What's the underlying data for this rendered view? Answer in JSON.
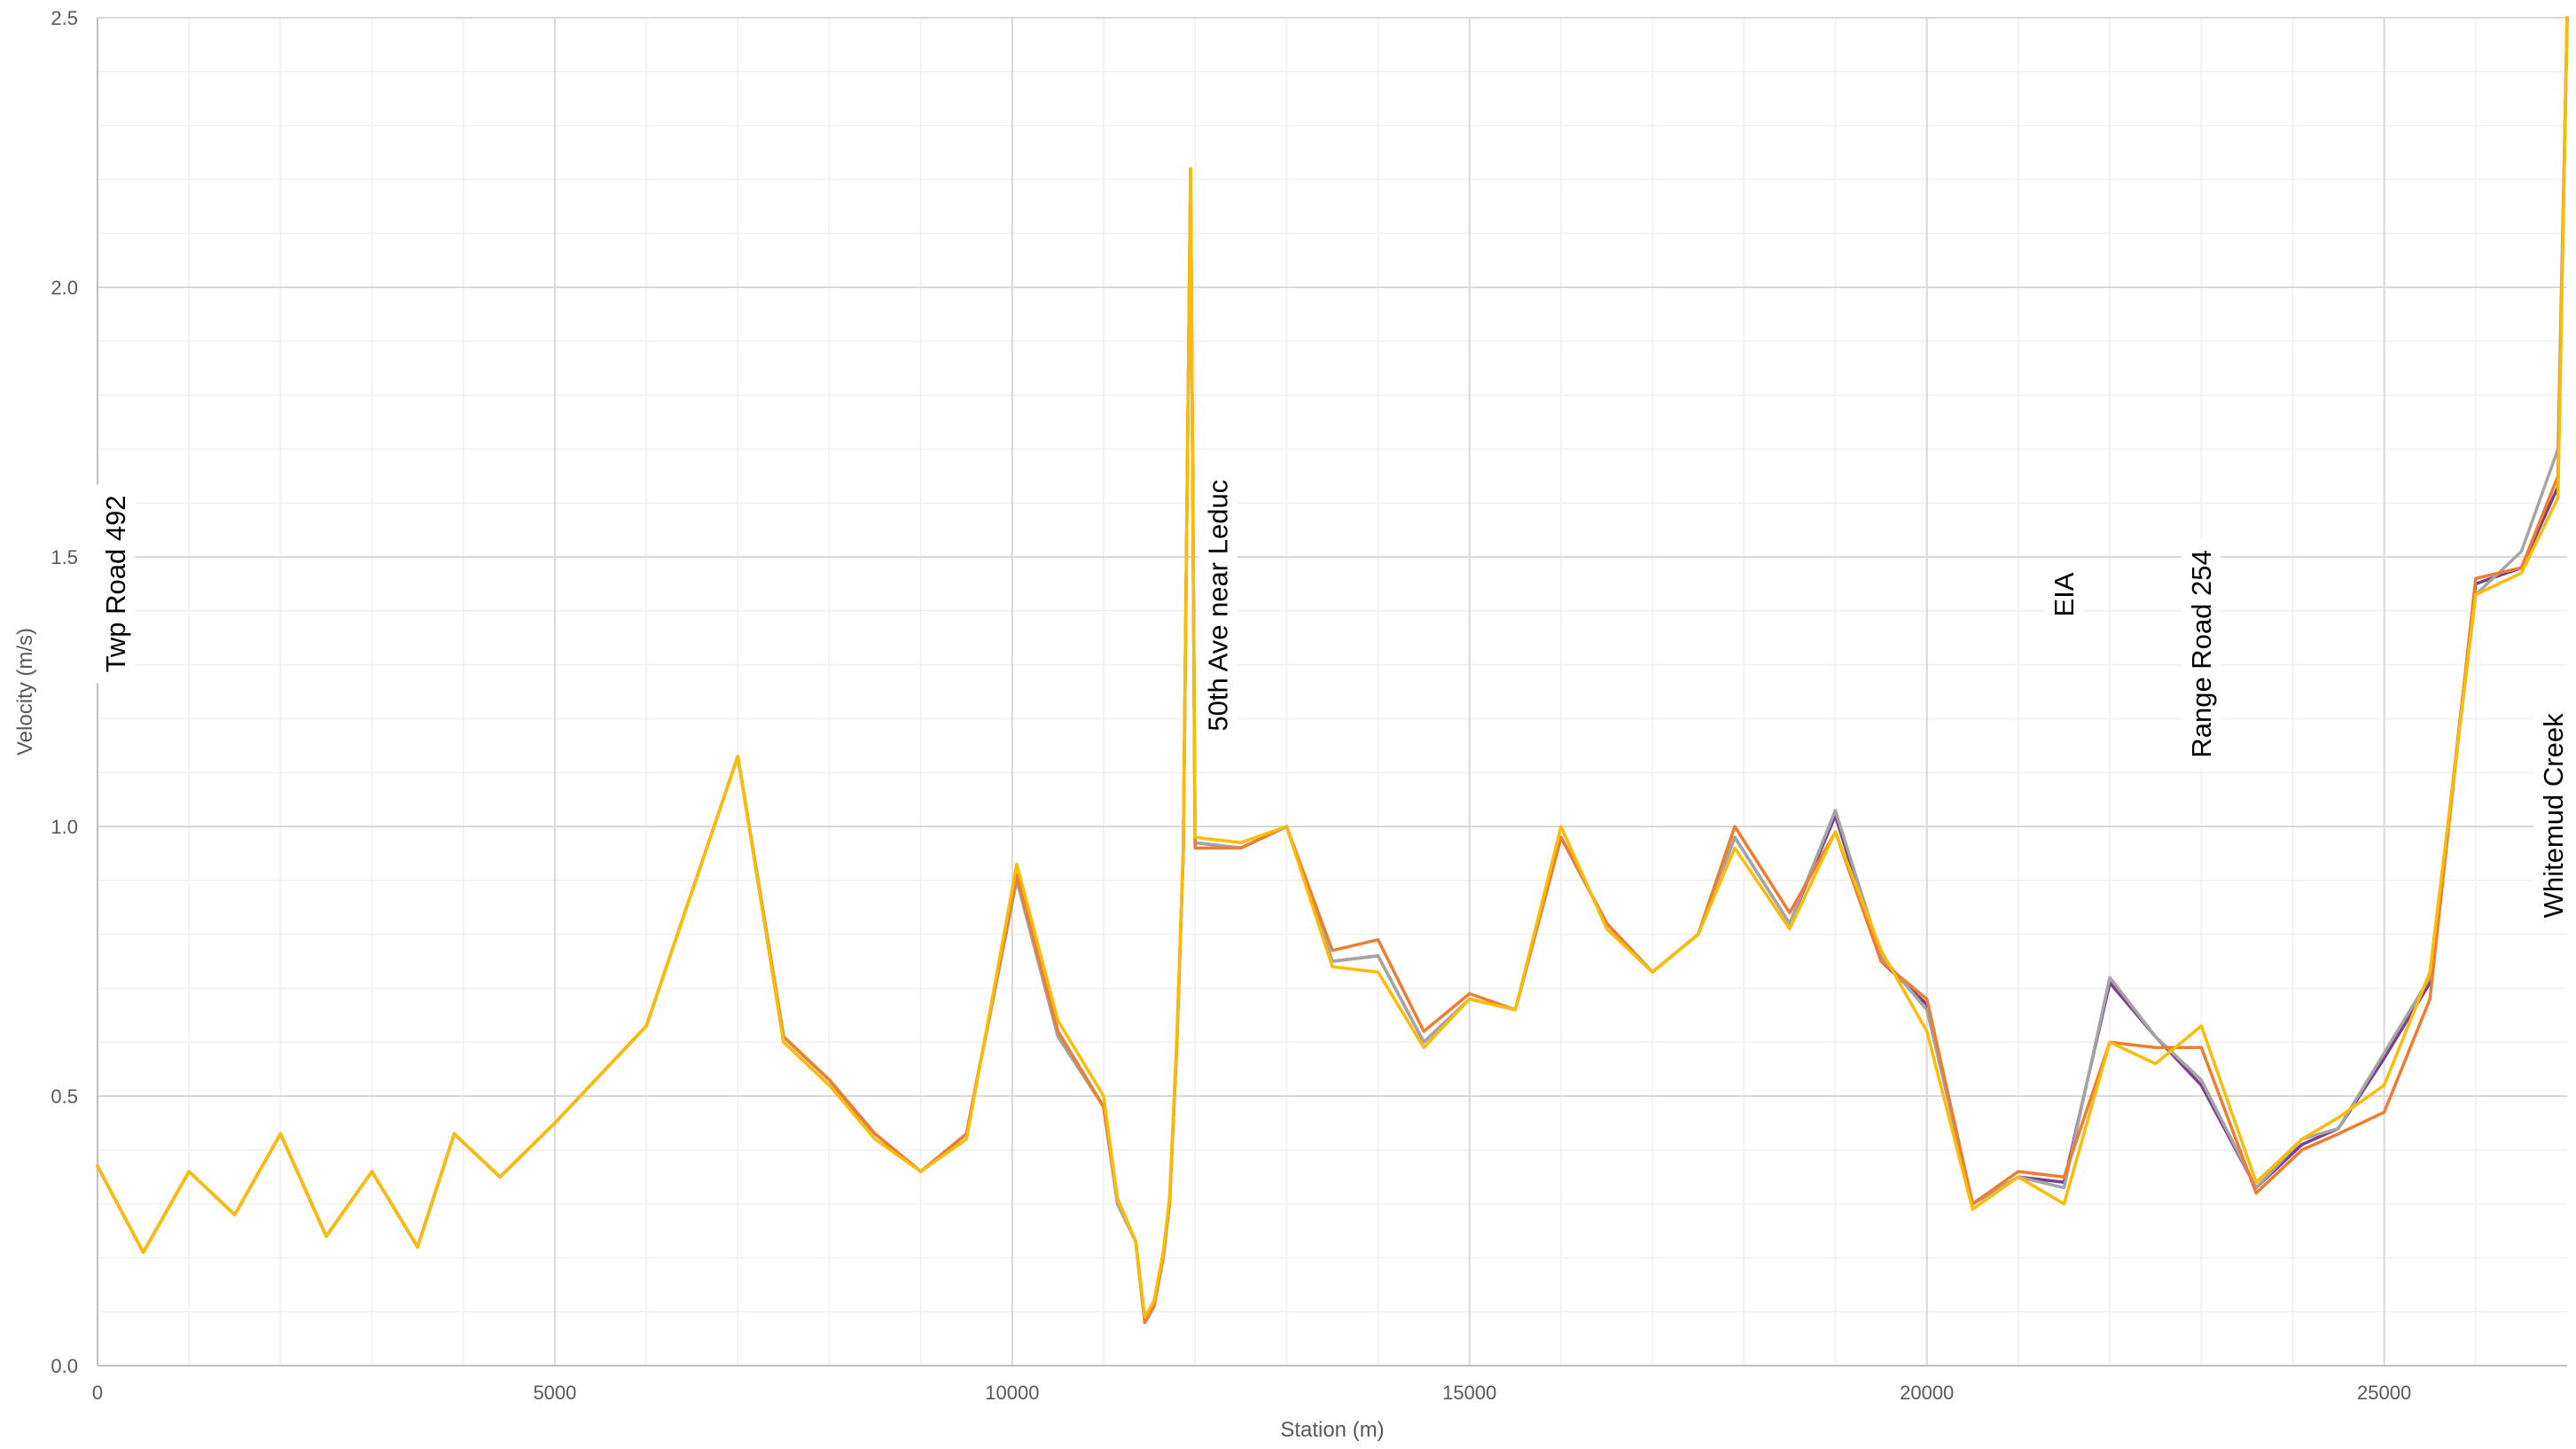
{
  "chart_data": {
    "type": "line",
    "xlabel": "Station (m)",
    "ylabel": "Velocity (m/s)",
    "xlim": [
      0,
      27000
    ],
    "ylim": [
      0,
      2.5
    ],
    "x_ticks": [
      "0",
      "5000",
      "10000",
      "15000",
      "20000",
      "25000"
    ],
    "y_ticks": [
      "0.0",
      "0.5",
      "1.0",
      "1.5",
      "2.0",
      "2.5"
    ],
    "grid": true,
    "annotations": [
      {
        "text": "Twp Road 492",
        "x": 200,
        "y": 1.45
      },
      {
        "text": "50th Ave near Leduc",
        "x": 12250,
        "y": 1.41
      },
      {
        "text": "EIA",
        "x": 21500,
        "y": 1.43
      },
      {
        "text": "Range Road 254",
        "x": 23000,
        "y": 1.32
      },
      {
        "text": "Whitemud Creek",
        "x": 26850,
        "y": 1.02
      }
    ],
    "series": [
      {
        "color": "#7b3f8c",
        "points": [
          [
            0,
            0.37
          ],
          [
            500,
            0.21
          ],
          [
            1000,
            0.36
          ],
          [
            1500,
            0.28
          ],
          [
            2000,
            0.43
          ],
          [
            2500,
            0.24
          ],
          [
            3000,
            0.36
          ],
          [
            3500,
            0.22
          ],
          [
            3900,
            0.43
          ],
          [
            4400,
            0.35
          ],
          [
            5000,
            0.45
          ],
          [
            6000,
            0.63
          ],
          [
            7000,
            1.13
          ],
          [
            7500,
            0.61
          ],
          [
            8000,
            0.53
          ],
          [
            8500,
            0.43
          ],
          [
            9000,
            0.36
          ],
          [
            9500,
            0.43
          ],
          [
            10050,
            0.91
          ],
          [
            10500,
            0.62
          ],
          [
            11000,
            0.48
          ],
          [
            11150,
            0.31
          ],
          [
            11350,
            0.23
          ],
          [
            11450,
            0.08
          ],
          [
            11550,
            0.11
          ],
          [
            11650,
            0.2
          ],
          [
            11720,
            0.3
          ],
          [
            11800,
            0.6
          ],
          [
            11870,
            0.95
          ],
          [
            11950,
            2.22
          ],
          [
            12000,
            0.97
          ],
          [
            12500,
            0.96
          ],
          [
            13000,
            1.0
          ],
          [
            13500,
            0.75
          ],
          [
            14000,
            0.76
          ],
          [
            14500,
            0.6
          ],
          [
            15000,
            0.68
          ],
          [
            15500,
            0.66
          ],
          [
            16000,
            0.98
          ],
          [
            16500,
            0.82
          ],
          [
            17000,
            0.73
          ],
          [
            17500,
            0.8
          ],
          [
            17900,
            0.98
          ],
          [
            18500,
            0.82
          ],
          [
            19000,
            1.02
          ],
          [
            19500,
            0.75
          ],
          [
            20000,
            0.67
          ],
          [
            20500,
            0.3
          ],
          [
            21000,
            0.35
          ],
          [
            21500,
            0.34
          ],
          [
            22000,
            0.71
          ],
          [
            22500,
            0.61
          ],
          [
            23000,
            0.52
          ],
          [
            23600,
            0.33
          ],
          [
            24100,
            0.41
          ],
          [
            24500,
            0.44
          ],
          [
            25000,
            0.57
          ],
          [
            25500,
            0.71
          ],
          [
            26000,
            1.45
          ],
          [
            26500,
            1.48
          ],
          [
            26900,
            1.63
          ],
          [
            27000,
            2.5
          ]
        ]
      },
      {
        "color": "#a5a5a5",
        "points": [
          [
            0,
            0.37
          ],
          [
            500,
            0.21
          ],
          [
            1000,
            0.36
          ],
          [
            1500,
            0.28
          ],
          [
            2000,
            0.43
          ],
          [
            2500,
            0.24
          ],
          [
            3000,
            0.36
          ],
          [
            3500,
            0.22
          ],
          [
            3900,
            0.43
          ],
          [
            4400,
            0.35
          ],
          [
            5000,
            0.45
          ],
          [
            6000,
            0.63
          ],
          [
            7000,
            1.13
          ],
          [
            7500,
            0.6
          ],
          [
            8000,
            0.52
          ],
          [
            8500,
            0.43
          ],
          [
            9000,
            0.36
          ],
          [
            9500,
            0.43
          ],
          [
            10050,
            0.9
          ],
          [
            10500,
            0.61
          ],
          [
            11000,
            0.48
          ],
          [
            11150,
            0.3
          ],
          [
            11350,
            0.23
          ],
          [
            11450,
            0.08
          ],
          [
            11550,
            0.11
          ],
          [
            11650,
            0.2
          ],
          [
            11720,
            0.3
          ],
          [
            11800,
            0.6
          ],
          [
            11870,
            0.95
          ],
          [
            11950,
            2.22
          ],
          [
            12000,
            0.97
          ],
          [
            12500,
            0.96
          ],
          [
            13000,
            1.0
          ],
          [
            13500,
            0.75
          ],
          [
            14000,
            0.76
          ],
          [
            14500,
            0.6
          ],
          [
            15000,
            0.68
          ],
          [
            15500,
            0.66
          ],
          [
            16000,
            0.98
          ],
          [
            16500,
            0.82
          ],
          [
            17000,
            0.73
          ],
          [
            17500,
            0.8
          ],
          [
            17900,
            0.98
          ],
          [
            18500,
            0.82
          ],
          [
            19000,
            1.03
          ],
          [
            19500,
            0.76
          ],
          [
            20000,
            0.66
          ],
          [
            20500,
            0.3
          ],
          [
            21000,
            0.35
          ],
          [
            21500,
            0.33
          ],
          [
            22000,
            0.72
          ],
          [
            22500,
            0.61
          ],
          [
            23000,
            0.53
          ],
          [
            23600,
            0.33
          ],
          [
            24100,
            0.42
          ],
          [
            24500,
            0.44
          ],
          [
            25000,
            0.58
          ],
          [
            25500,
            0.72
          ],
          [
            26000,
            1.43
          ],
          [
            26500,
            1.51
          ],
          [
            26900,
            1.7
          ],
          [
            27000,
            2.5
          ]
        ]
      },
      {
        "color": "#ed7d31",
        "points": [
          [
            0,
            0.37
          ],
          [
            500,
            0.21
          ],
          [
            1000,
            0.36
          ],
          [
            1500,
            0.28
          ],
          [
            2000,
            0.43
          ],
          [
            2500,
            0.24
          ],
          [
            3000,
            0.36
          ],
          [
            3500,
            0.22
          ],
          [
            3900,
            0.43
          ],
          [
            4400,
            0.35
          ],
          [
            5000,
            0.45
          ],
          [
            6000,
            0.63
          ],
          [
            7000,
            1.13
          ],
          [
            7500,
            0.61
          ],
          [
            8000,
            0.53
          ],
          [
            8500,
            0.43
          ],
          [
            9000,
            0.36
          ],
          [
            9500,
            0.43
          ],
          [
            10050,
            0.91
          ],
          [
            10500,
            0.62
          ],
          [
            11000,
            0.48
          ],
          [
            11150,
            0.31
          ],
          [
            11350,
            0.23
          ],
          [
            11450,
            0.08
          ],
          [
            11550,
            0.11
          ],
          [
            11650,
            0.2
          ],
          [
            11720,
            0.3
          ],
          [
            11800,
            0.6
          ],
          [
            11870,
            0.95
          ],
          [
            11950,
            2.22
          ],
          [
            12000,
            0.96
          ],
          [
            12500,
            0.96
          ],
          [
            13000,
            1.0
          ],
          [
            13500,
            0.77
          ],
          [
            14000,
            0.79
          ],
          [
            14500,
            0.62
          ],
          [
            15000,
            0.69
          ],
          [
            15500,
            0.66
          ],
          [
            16000,
            0.98
          ],
          [
            16500,
            0.82
          ],
          [
            17000,
            0.73
          ],
          [
            17500,
            0.8
          ],
          [
            17900,
            1.0
          ],
          [
            18500,
            0.84
          ],
          [
            19000,
            0.99
          ],
          [
            19500,
            0.75
          ],
          [
            20000,
            0.68
          ],
          [
            20500,
            0.3
          ],
          [
            21000,
            0.36
          ],
          [
            21500,
            0.35
          ],
          [
            22000,
            0.6
          ],
          [
            22500,
            0.59
          ],
          [
            23000,
            0.59
          ],
          [
            23600,
            0.32
          ],
          [
            24100,
            0.4
          ],
          [
            24500,
            0.43
          ],
          [
            25000,
            0.47
          ],
          [
            25500,
            0.68
          ],
          [
            26000,
            1.46
          ],
          [
            26500,
            1.48
          ],
          [
            26900,
            1.65
          ],
          [
            27000,
            2.5
          ]
        ]
      },
      {
        "color": "#fbbc05",
        "points": [
          [
            0,
            0.37
          ],
          [
            500,
            0.21
          ],
          [
            1000,
            0.36
          ],
          [
            1500,
            0.28
          ],
          [
            2000,
            0.43
          ],
          [
            2500,
            0.24
          ],
          [
            3000,
            0.36
          ],
          [
            3500,
            0.22
          ],
          [
            3900,
            0.43
          ],
          [
            4400,
            0.35
          ],
          [
            5000,
            0.45
          ],
          [
            6000,
            0.63
          ],
          [
            7000,
            1.13
          ],
          [
            7500,
            0.6
          ],
          [
            8000,
            0.52
          ],
          [
            8500,
            0.42
          ],
          [
            9000,
            0.36
          ],
          [
            9500,
            0.42
          ],
          [
            10050,
            0.93
          ],
          [
            10500,
            0.64
          ],
          [
            11000,
            0.5
          ],
          [
            11150,
            0.31
          ],
          [
            11350,
            0.23
          ],
          [
            11450,
            0.09
          ],
          [
            11550,
            0.12
          ],
          [
            11650,
            0.21
          ],
          [
            11720,
            0.31
          ],
          [
            11800,
            0.61
          ],
          [
            11870,
            0.96
          ],
          [
            11950,
            2.22
          ],
          [
            12000,
            0.98
          ],
          [
            12500,
            0.97
          ],
          [
            13000,
            1.0
          ],
          [
            13500,
            0.74
          ],
          [
            14000,
            0.73
          ],
          [
            14500,
            0.59
          ],
          [
            15000,
            0.68
          ],
          [
            15500,
            0.66
          ],
          [
            16000,
            1.0
          ],
          [
            16500,
            0.81
          ],
          [
            17000,
            0.73
          ],
          [
            17500,
            0.8
          ],
          [
            17900,
            0.96
          ],
          [
            18500,
            0.81
          ],
          [
            19000,
            0.99
          ],
          [
            19500,
            0.77
          ],
          [
            20000,
            0.62
          ],
          [
            20500,
            0.29
          ],
          [
            21000,
            0.35
          ],
          [
            21500,
            0.3
          ],
          [
            22000,
            0.6
          ],
          [
            22500,
            0.56
          ],
          [
            23000,
            0.63
          ],
          [
            23600,
            0.34
          ],
          [
            24100,
            0.42
          ],
          [
            24500,
            0.46
          ],
          [
            25000,
            0.52
          ],
          [
            25500,
            0.73
          ],
          [
            26000,
            1.43
          ],
          [
            26500,
            1.47
          ],
          [
            26900,
            1.61
          ],
          [
            27000,
            2.5
          ]
        ]
      }
    ]
  }
}
